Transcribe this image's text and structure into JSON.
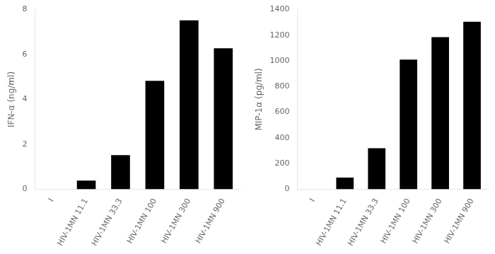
{
  "chart_data": [
    {
      "type": "bar",
      "categories": [
        "I",
        "HIV-1MN 11.1",
        "HIV-1MN 33.3",
        "HIV-1MN 100",
        "HIV-1MN 300",
        "HIV-1MN 900"
      ],
      "values": [
        0,
        0.38,
        1.52,
        4.83,
        7.52,
        6.28
      ],
      "color": "#000000",
      "y_label": "IFN-α (ng/ml)",
      "ylim": [
        0,
        8
      ],
      "yticks": [
        0,
        2,
        4,
        6,
        8
      ],
      "grid": false
    },
    {
      "type": "bar",
      "categories": [
        "I",
        "HIV-1MN 11.1",
        "HIV-1MN 33.3",
        "HIV-1MN 100",
        "HIV-1MN 300",
        "HIV-1MN 900"
      ],
      "values": [
        0,
        90,
        320,
        1010,
        1185,
        1305
      ],
      "color": "#000000",
      "y_label": "MIP-1α (pg/ml)",
      "ylim": [
        0,
        1400
      ],
      "yticks": [
        0,
        200,
        400,
        600,
        800,
        1000,
        1200,
        1400
      ],
      "grid": false
    }
  ]
}
